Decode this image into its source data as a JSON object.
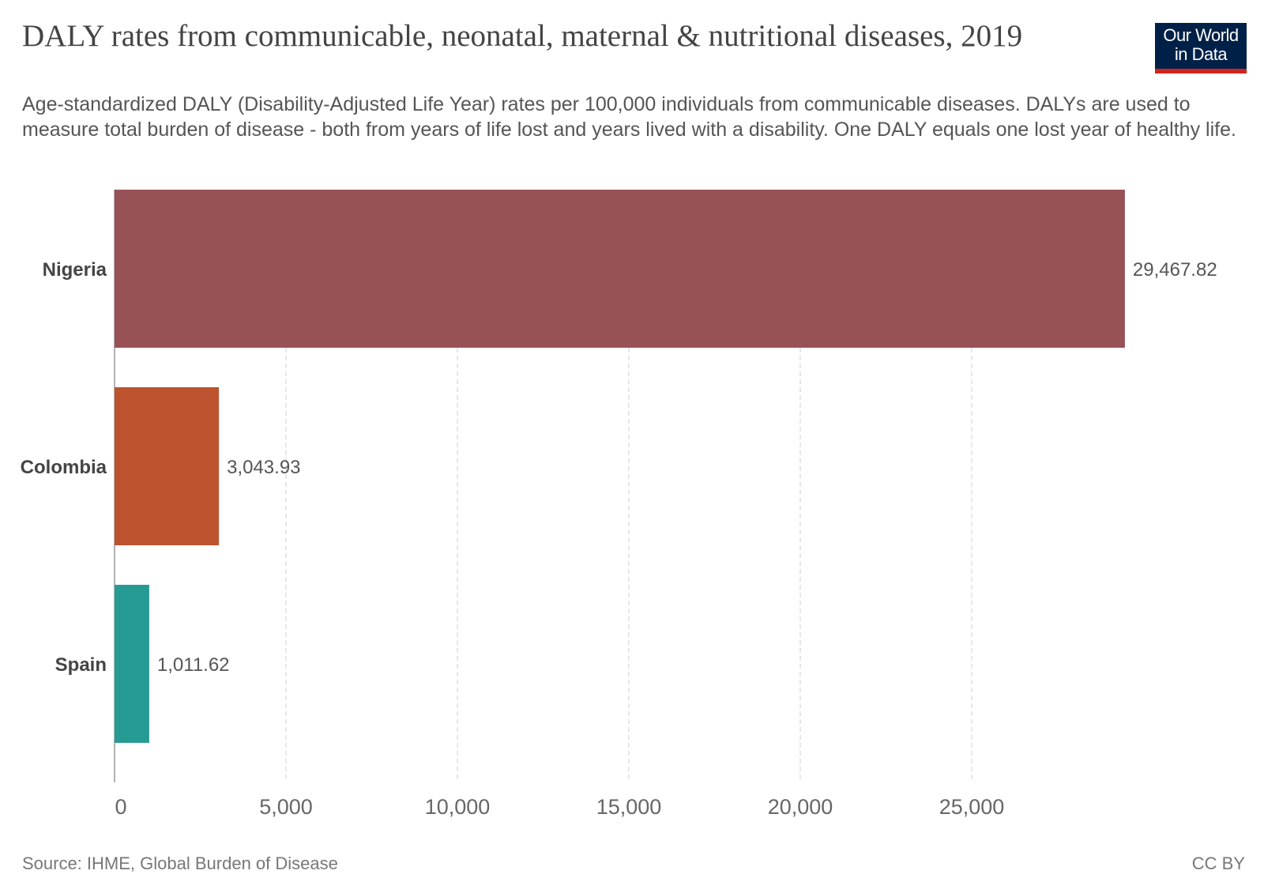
{
  "header": {
    "title": "DALY rates from communicable, neonatal, maternal & nutritional diseases, 2019",
    "subtitle": "Age-standardized DALY (Disability-Adjusted Life Year) rates per 100,000 individuals from communicable diseases. DALYs are used to measure total burden of disease - both from years of life lost and years lived with a disability. One DALY equals one lost year of healthy life.",
    "logo_line1": "Our World",
    "logo_line2": "in Data"
  },
  "footer": {
    "source": "Source: IHME, Global Burden of Disease",
    "license": "CC BY"
  },
  "chart_data": {
    "type": "bar",
    "orientation": "horizontal",
    "title": "DALY rates from communicable, neonatal, maternal & nutritional diseases, 2019",
    "xlabel": "",
    "ylabel": "",
    "xlim": [
      0,
      30000
    ],
    "grid": true,
    "categories": [
      "Nigeria",
      "Colombia",
      "Spain"
    ],
    "values": [
      29467.82,
      3043.93,
      1011.62
    ],
    "value_labels": [
      "29,467.82",
      "3,043.93",
      "1,011.62"
    ],
    "colors": [
      "#985157",
      "#bc532e",
      "#269b93"
    ],
    "ticks": [
      0,
      5000,
      10000,
      15000,
      20000,
      25000
    ],
    "tick_labels": [
      "0",
      "5,000",
      "10,000",
      "15,000",
      "20,000",
      "25,000"
    ]
  }
}
